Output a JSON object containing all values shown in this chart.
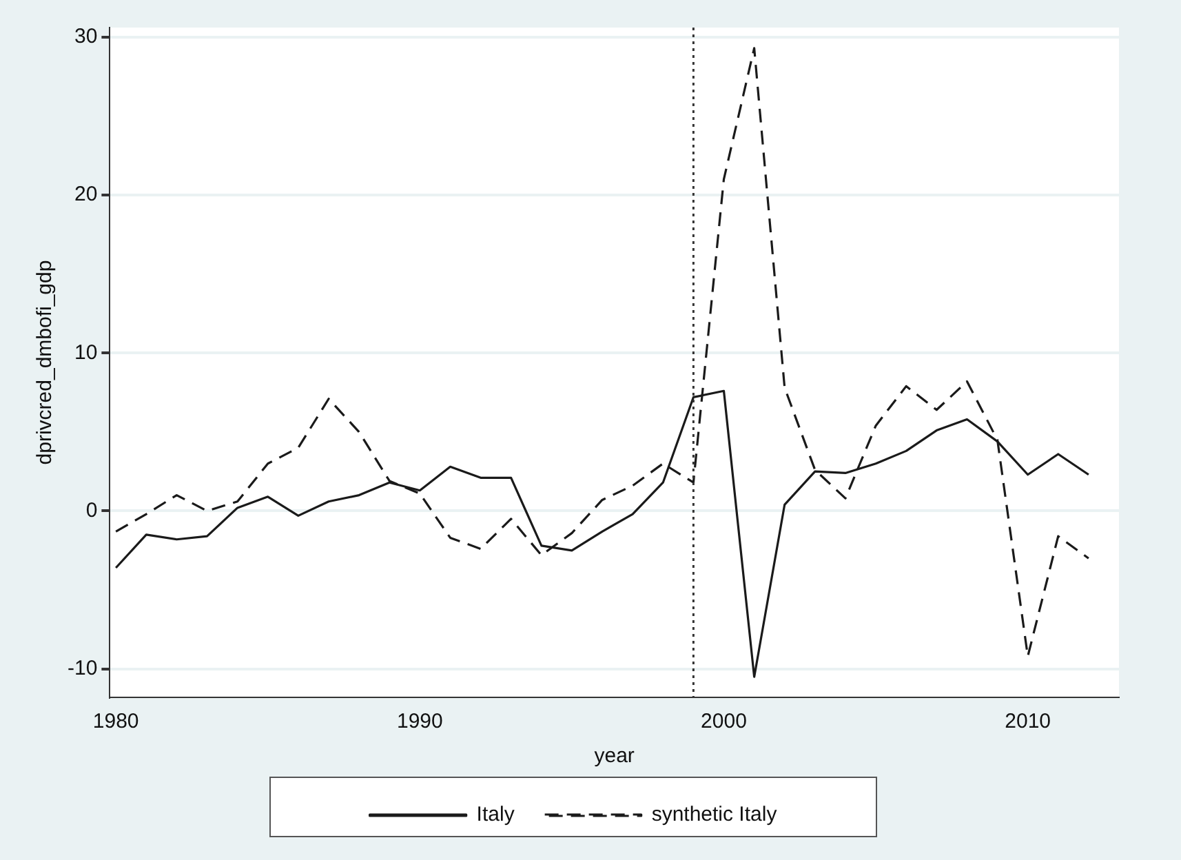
{
  "chart_data": {
    "type": "line",
    "xlabel": "year",
    "ylabel": "dprivcred_dmbofi_gdp",
    "x": [
      1980,
      1981,
      1982,
      1983,
      1984,
      1985,
      1986,
      1987,
      1988,
      1989,
      1990,
      1991,
      1992,
      1993,
      1994,
      1995,
      1996,
      1997,
      1998,
      1999,
      2000,
      2001,
      2002,
      2003,
      2004,
      2005,
      2006,
      2007,
      2008,
      2009,
      2010,
      2011,
      2012
    ],
    "series": [
      {
        "name": "Italy",
        "color": "#1a1a1a",
        "line_style": "solid",
        "values": [
          -3.6,
          -1.5,
          -1.8,
          -1.6,
          0.2,
          0.9,
          -0.3,
          0.6,
          1.0,
          1.8,
          1.3,
          2.8,
          2.1,
          2.1,
          -2.2,
          -2.5,
          -1.3,
          -0.2,
          1.8,
          7.2,
          7.6,
          -10.5,
          0.4,
          2.5,
          2.4,
          3.0,
          3.8,
          5.1,
          5.8,
          4.4,
          2.3,
          3.6,
          2.3
        ]
      },
      {
        "name": "synthetic Italy",
        "color": "#1a1a1a",
        "line_style": "dashed",
        "values": [
          -1.3,
          -0.2,
          1.0,
          0.0,
          0.6,
          3.0,
          4.0,
          7.1,
          5.0,
          1.9,
          1.1,
          -1.7,
          -2.4,
          -0.5,
          -2.8,
          -1.4,
          0.7,
          1.6,
          3.0,
          1.8,
          21.0,
          29.3,
          7.8,
          2.6,
          0.8,
          5.4,
          7.9,
          6.4,
          8.2,
          4.5,
          -9.2,
          -1.6,
          -3.0
        ]
      }
    ],
    "xlim": [
      1979.8,
      2013
    ],
    "xticks": [
      1980,
      1990,
      2000,
      2010
    ],
    "ylim": [
      -11.8,
      30.6
    ],
    "yticks": [
      -10,
      0,
      10,
      20,
      30
    ],
    "ref_lines": [
      {
        "axis": "x",
        "value": 1999,
        "color": "#333333",
        "line_style": "dotted"
      }
    ],
    "grid": "y",
    "legend": "bottom",
    "marker": "none"
  }
}
